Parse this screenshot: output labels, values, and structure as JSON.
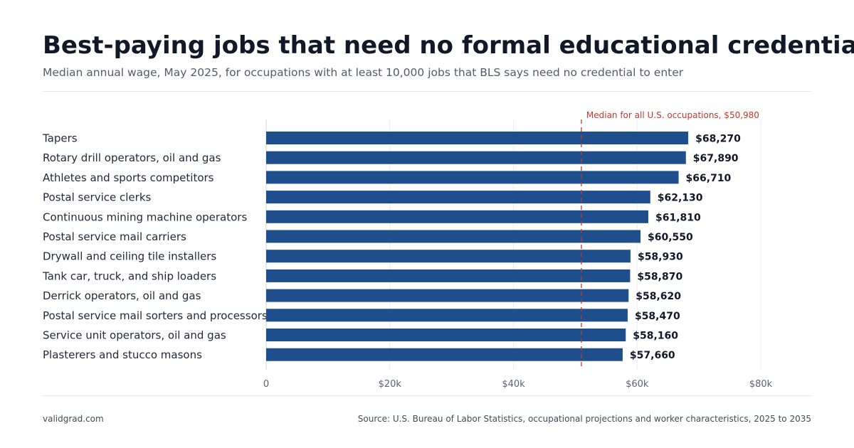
{
  "header": {
    "title": "Best-paying jobs that need no formal educational credential",
    "subtitle": "Median annual wage, May 2025, for occupations with at least 10,000 jobs that BLS says need no credential to enter"
  },
  "colors": {
    "bar": "#1f4e8c",
    "reference_line": "#c0392b",
    "grid": "#e5e7eb",
    "text": "#1f2937"
  },
  "chart_data": {
    "type": "bar",
    "orientation": "horizontal",
    "categories": [
      "Tapers",
      "Rotary drill operators, oil and gas",
      "Athletes and sports competitors",
      "Postal service clerks",
      "Continuous mining machine operators",
      "Postal service mail carriers",
      "Drywall and ceiling tile installers",
      "Tank car, truck, and ship loaders",
      "Derrick operators, oil and gas",
      "Postal service mail sorters and processors",
      "Service unit operators, oil and gas",
      "Plasterers and stucco masons"
    ],
    "values": [
      68270,
      67890,
      66710,
      62130,
      61810,
      60550,
      58930,
      58870,
      58620,
      58470,
      58160,
      57660
    ],
    "value_labels": [
      "$68,270",
      "$67,890",
      "$66,710",
      "$62,130",
      "$61,810",
      "$60,550",
      "$58,930",
      "$58,870",
      "$58,620",
      "$58,470",
      "$58,160",
      "$57,660"
    ],
    "xlim": [
      0,
      80000
    ],
    "xticks": [
      0,
      20000,
      40000,
      60000,
      80000
    ],
    "xtick_labels": [
      "0",
      "$20k",
      "$40k",
      "$60k",
      "$80k"
    ],
    "reference_line": {
      "value": 50980,
      "label": "Median for all U.S. occupations, $50,980",
      "style": "dashed"
    },
    "grid": true,
    "legend": "none"
  },
  "footer": {
    "site": "validgrad.com",
    "source": "Source: U.S. Bureau of Labor Statistics, occupational projections and worker characteristics, 2025 to 2035"
  }
}
